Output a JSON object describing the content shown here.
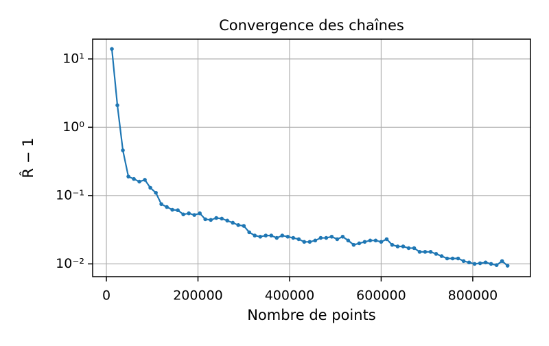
{
  "chart_data": {
    "type": "line",
    "title": "Convergence des chaînes",
    "x_label": "Nombre de points",
    "y_label": "R̂ − 1",
    "x": [
      12000,
      24000,
      36000,
      48000,
      60000,
      72000,
      84000,
      96000,
      108000,
      120000,
      132000,
      144000,
      156000,
      168000,
      180000,
      192000,
      204000,
      216000,
      228000,
      240000,
      252000,
      264000,
      276000,
      288000,
      300000,
      312000,
      324000,
      336000,
      348000,
      360000,
      372000,
      384000,
      396000,
      408000,
      420000,
      432000,
      444000,
      456000,
      468000,
      480000,
      492000,
      504000,
      516000,
      528000,
      540000,
      552000,
      564000,
      576000,
      588000,
      600000,
      612000,
      624000,
      636000,
      648000,
      660000,
      672000,
      684000,
      696000,
      708000,
      720000,
      732000,
      744000,
      756000,
      768000,
      780000,
      792000,
      804000,
      816000,
      828000,
      840000,
      852000,
      864000,
      876000
    ],
    "series": [
      {
        "name": "R̂ − 1",
        "color": "#1f77b4",
        "values": [
          14,
          2.1,
          0.46,
          0.19,
          0.175,
          0.16,
          0.17,
          0.13,
          0.11,
          0.075,
          0.068,
          0.062,
          0.061,
          0.053,
          0.055,
          0.052,
          0.055,
          0.045,
          0.044,
          0.047,
          0.046,
          0.043,
          0.04,
          0.037,
          0.036,
          0.029,
          0.026,
          0.025,
          0.026,
          0.026,
          0.024,
          0.026,
          0.025,
          0.024,
          0.023,
          0.021,
          0.021,
          0.022,
          0.024,
          0.024,
          0.025,
          0.023,
          0.025,
          0.022,
          0.019,
          0.02,
          0.021,
          0.022,
          0.022,
          0.021,
          0.023,
          0.019,
          0.018,
          0.018,
          0.017,
          0.017,
          0.015,
          0.015,
          0.015,
          0.014,
          0.013,
          0.012,
          0.012,
          0.012,
          0.011,
          0.0105,
          0.01,
          0.0102,
          0.0105,
          0.01,
          0.0096,
          0.011,
          0.0094
        ]
      }
    ],
    "xlim": [
      -30000,
      926000
    ],
    "xticks": [
      0,
      200000,
      400000,
      600000,
      800000
    ],
    "ylim": [
      0.0065,
      19.5
    ],
    "log_y": true,
    "yticks": [
      {
        "value": 0.01,
        "label": "10⁻²"
      },
      {
        "value": 0.1,
        "label": "10⁻¹"
      },
      {
        "value": 1,
        "label": "10⁰"
      },
      {
        "value": 10,
        "label": "10¹"
      }
    ],
    "grid": true
  }
}
